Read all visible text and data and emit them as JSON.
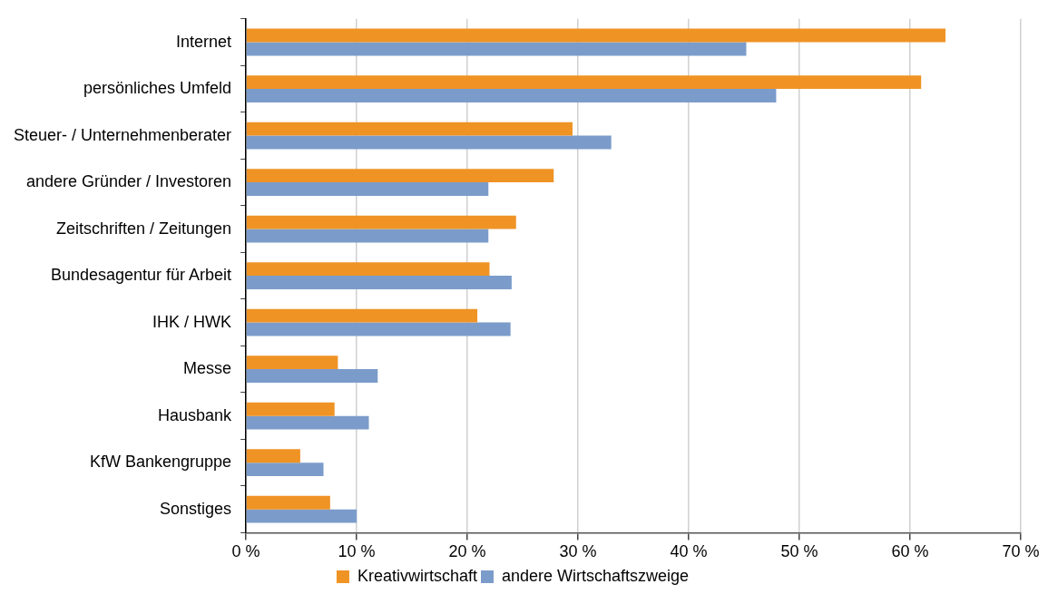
{
  "chart_data": {
    "type": "bar",
    "orientation": "horizontal",
    "categories": [
      "Internet",
      "persönliches Umfeld",
      "Steuer- / Unternehmenberater",
      "andere Gründer / Investoren",
      "Zeitschriften / Zeitungen",
      "Bundesagentur für Arbeit",
      "IHK / HWK",
      "Messe",
      "Hausbank",
      "KfW Bankengruppe",
      "Sonstiges"
    ],
    "series": [
      {
        "name": "Kreativwirtschaft",
        "color": "#ef9325",
        "values": [
          63.2,
          61.0,
          29.5,
          27.8,
          24.4,
          22.0,
          20.9,
          8.3,
          8.0,
          4.9,
          7.6
        ]
      },
      {
        "name": "andere Wirtschaftszweige",
        "color": "#7b9cca",
        "values": [
          45.2,
          47.9,
          33.0,
          21.9,
          21.9,
          24.0,
          23.9,
          11.9,
          11.1,
          7.0,
          10.0
        ]
      }
    ],
    "xlim": [
      0,
      70
    ],
    "xticks": [
      {
        "value": 0,
        "label": "0 %"
      },
      {
        "value": 10,
        "label": "10 %"
      },
      {
        "value": 20,
        "label": "20 %"
      },
      {
        "value": 30,
        "label": "30 %"
      },
      {
        "value": 40,
        "label": "40 %"
      },
      {
        "value": 50,
        "label": "50 %"
      },
      {
        "value": 60,
        "label": "60 %"
      },
      {
        "value": 70,
        "label": "70 %"
      }
    ],
    "grid": "x",
    "legend": "bottom"
  }
}
